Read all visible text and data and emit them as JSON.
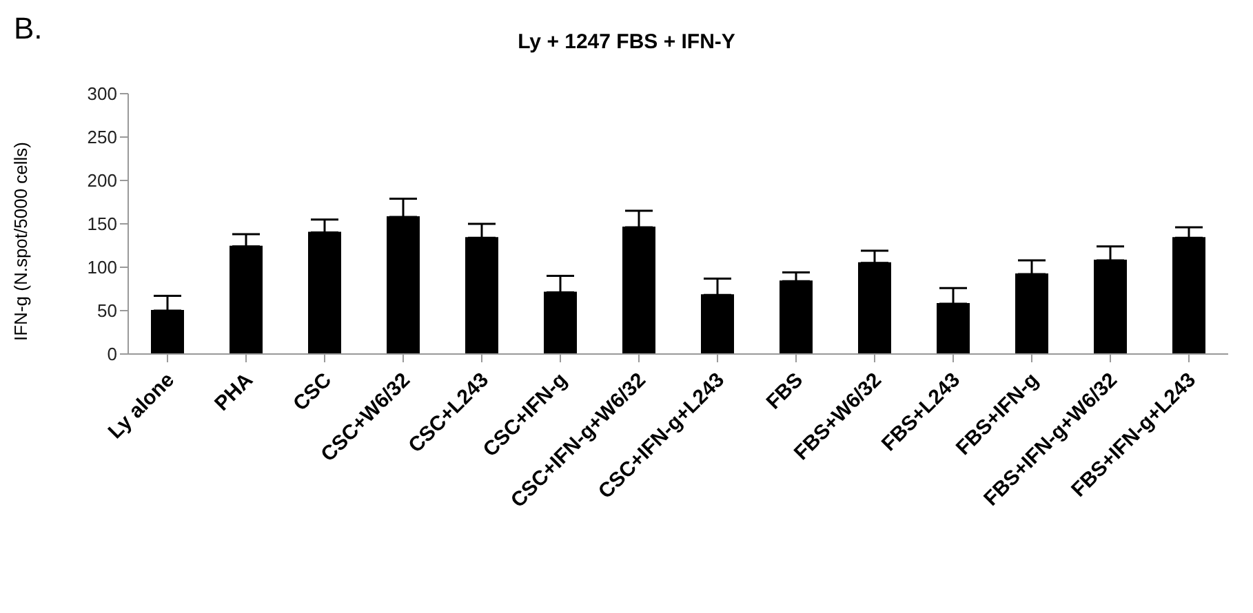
{
  "chart_data": {
    "type": "bar",
    "title": "Ly + 1247 FBS + IFN-Y",
    "ylabel": "IFN-g (N.spot/5000 cells)",
    "annotations": [
      "B."
    ],
    "categories": [
      "Ly alone",
      "PHA",
      "CSC",
      "CSC+W6/32",
      "CSC+L243",
      "CSC+IFN-g",
      "CSC+IFN-g+W6/32",
      "CSC+IFN-g+L243",
      "FBS",
      "FBS+W6/32",
      "FBS+L243",
      "FBS+IFN-g",
      "FBS+IFN-g+W6/32",
      "FBS+IFN-g+L243"
    ],
    "values": [
      50,
      124,
      140,
      158,
      134,
      71,
      146,
      68,
      84,
      105,
      58,
      92,
      108,
      134
    ],
    "errors": [
      [
        50,
        67
      ],
      [
        124,
        138
      ],
      [
        140,
        155
      ],
      [
        158,
        179
      ],
      [
        134,
        150
      ],
      [
        71,
        90
      ],
      [
        146,
        165
      ],
      [
        68,
        87
      ],
      [
        84,
        94
      ],
      [
        105,
        119
      ],
      [
        58,
        76
      ],
      [
        92,
        108
      ],
      [
        108,
        124
      ],
      [
        134,
        146
      ]
    ],
    "color": "#000000",
    "ylim": [
      0,
      300
    ],
    "yticks": [
      0,
      50,
      100,
      150,
      200,
      250,
      300
    ],
    "grid": false,
    "legend": false
  }
}
